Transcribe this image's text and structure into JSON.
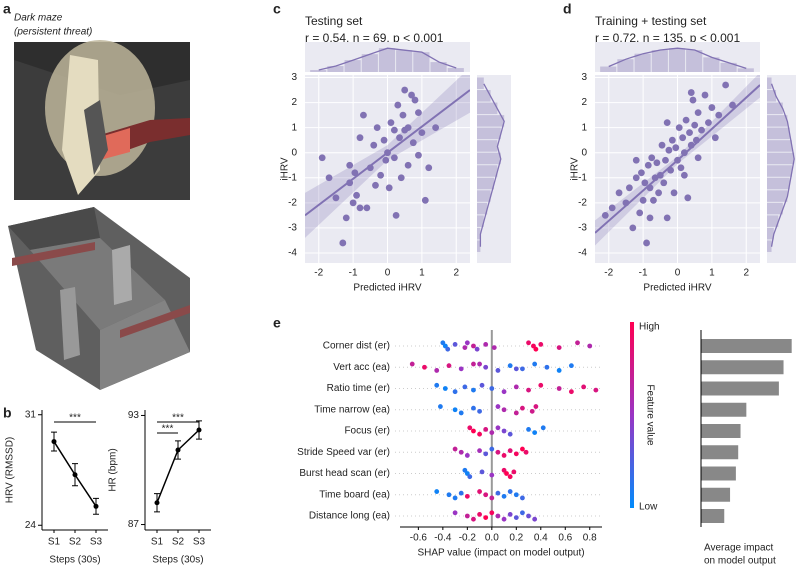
{
  "panel_labels": [
    "a",
    "b",
    "c",
    "d",
    "e"
  ],
  "panel_a": {
    "caption": [
      "Dark maze",
      "(persistent threat)"
    ]
  },
  "chart_data": [
    {
      "type": "line",
      "categories": [
        "S1",
        "S2",
        "S3"
      ],
      "values": [
        29.3,
        27.2,
        25.2
      ],
      "errors": [
        0.6,
        0.7,
        0.5
      ],
      "ylim": [
        23.7,
        31.3
      ],
      "yticks": [
        24,
        31
      ],
      "ylabel": "HRV (RMSSD)",
      "xlabel": "Steps (30s)",
      "color": "#000000",
      "significance": [
        {
          "label": "***",
          "between": [
            "S1",
            "S3"
          ]
        }
      ]
    },
    {
      "type": "line",
      "categories": [
        "S1",
        "S2",
        "S3"
      ],
      "values": [
        88.2,
        91.1,
        92.2
      ],
      "errors": [
        0.5,
        0.5,
        0.5
      ],
      "ylim": [
        86.7,
        93.3
      ],
      "yticks": [
        87,
        93
      ],
      "ylabel": "HR (bpm)",
      "xlabel": "Steps (30s)",
      "color": "#000000",
      "significance": [
        {
          "label": "***",
          "between": [
            "S1",
            "S3"
          ]
        },
        {
          "label": "***",
          "between": [
            "S1",
            "S2"
          ]
        }
      ]
    },
    {
      "type": "scatter",
      "title": "Testing set",
      "subtitle": "r = 0.54, n = 69, p < 0.001",
      "color": "#8172b3",
      "x": [
        -1.9,
        -1.7,
        -1.5,
        -1.3,
        -1.2,
        -1.1,
        -1.0,
        -0.95,
        -0.9,
        -0.8,
        -0.8,
        -0.6,
        -0.5,
        -0.4,
        -0.35,
        -0.3,
        -0.2,
        -0.1,
        -0.05,
        0.0,
        0.05,
        0.1,
        0.2,
        0.2,
        0.3,
        0.35,
        0.4,
        0.45,
        0.5,
        0.5,
        0.6,
        0.6,
        0.7,
        0.75,
        0.8,
        0.9,
        1.0,
        1.1,
        1.2,
        1.4,
        -1.1,
        0.25,
        -0.7,
        0.9
      ],
      "y": [
        -0.2,
        -1.0,
        -1.8,
        -3.6,
        -2.6,
        -1.2,
        -2.0,
        -0.8,
        -1.7,
        0.6,
        -2.2,
        -2.2,
        -0.6,
        0.3,
        -1.3,
        1.0,
        -0.9,
        0.5,
        -0.3,
        0.0,
        -1.4,
        1.2,
        0.9,
        -0.2,
        1.9,
        0.6,
        -1.0,
        1.5,
        0.9,
        2.5,
        1.0,
        -0.5,
        2.3,
        0.4,
        2.1,
        1.6,
        0.8,
        -1.9,
        -0.6,
        1.0,
        -0.5,
        -2.5,
        1.5,
        -0.1
      ],
      "xlim": [
        -2.4,
        2.4
      ],
      "ylim": [
        -4.4,
        3.1
      ],
      "xticks": [
        -2,
        -1,
        0,
        1,
        2
      ],
      "yticks": [
        -4,
        -3,
        -2,
        -1,
        0,
        1,
        2,
        3
      ],
      "xlabel": "Predicted iHRV",
      "ylabel": "iHRV",
      "fit": {
        "x": [
          -2.4,
          0,
          2.4
        ],
        "y": [
          -2.5,
          0.0,
          2.5
        ],
        "lower": [
          -3.4,
          -0.3,
          1.6
        ],
        "upper": [
          -1.6,
          0.3,
          3.4
        ]
      },
      "top_hist": {
        "bins": [
          -2.25,
          -1.75,
          -1.25,
          -0.75,
          -0.25,
          0.25,
          0.75,
          1.25,
          1.75,
          2.25
        ],
        "counts": [
          1,
          3,
          6,
          9,
          12,
          11,
          10,
          5,
          2
        ]
      },
      "right_hist": {
        "bins": [
          -4,
          -3.5,
          -3,
          -2.5,
          -2,
          -1.5,
          -1,
          -0.5,
          0,
          0.5,
          1,
          1.5,
          2,
          2.5,
          3
        ],
        "counts": [
          1,
          1,
          2,
          3,
          4,
          5,
          6,
          7,
          6,
          7,
          8,
          6,
          4,
          2
        ]
      }
    },
    {
      "type": "scatter",
      "title": "Training + testing set",
      "subtitle": "r = 0.72, n = 135, p < 0.001",
      "color": "#8172b3",
      "x": [
        -2.1,
        -1.9,
        -1.7,
        -1.5,
        -1.4,
        -1.3,
        -1.2,
        -1.1,
        -1.05,
        -1.0,
        -0.95,
        -0.9,
        -0.85,
        -0.8,
        -0.75,
        -0.7,
        -0.65,
        -0.6,
        -0.55,
        -0.5,
        -0.45,
        -0.4,
        -0.35,
        -0.3,
        -0.25,
        -0.2,
        -0.15,
        -0.1,
        -0.05,
        0.0,
        0.05,
        0.1,
        0.15,
        0.2,
        0.25,
        0.3,
        0.35,
        0.4,
        0.45,
        0.5,
        0.55,
        0.6,
        0.7,
        0.8,
        0.9,
        1.0,
        1.1,
        1.2,
        1.4,
        1.6,
        -1.2,
        -0.8,
        0.2,
        0.6,
        -0.3,
        0.4
      ],
      "y": [
        -2.5,
        -2.2,
        -1.6,
        -2.0,
        -1.4,
        -3.0,
        -1.0,
        -2.4,
        -0.8,
        -1.9,
        -1.2,
        -3.6,
        -0.5,
        -1.4,
        -0.2,
        -1.9,
        -1.0,
        -0.4,
        -1.6,
        -0.9,
        0.3,
        -1.2,
        -0.3,
        -2.6,
        0.1,
        -0.7,
        0.5,
        -1.6,
        0.2,
        -0.3,
        1.0,
        -0.6,
        0.6,
        0.0,
        1.3,
        -1.8,
        0.8,
        0.3,
        2.1,
        1.1,
        0.5,
        1.6,
        0.9,
        2.3,
        1.2,
        1.8,
        0.6,
        1.5,
        2.7,
        1.9,
        -0.3,
        -2.6,
        -0.9,
        -0.2,
        1.2,
        2.4
      ],
      "xlim": [
        -2.4,
        2.4
      ],
      "ylim": [
        -4.4,
        3.1
      ],
      "xticks": [
        -2,
        -1,
        0,
        1,
        2
      ],
      "yticks": [
        -4,
        -3,
        -2,
        -1,
        0,
        1,
        2,
        3
      ],
      "xlabel": "Predicted iHRV",
      "ylabel": "iHRV",
      "fit": {
        "x": [
          -2.4,
          0,
          2.4
        ],
        "y": [
          -3.2,
          -0.3,
          2.7
        ],
        "lower": [
          -3.7,
          -0.45,
          2.2
        ],
        "upper": [
          -2.7,
          -0.15,
          3.2
        ]
      },
      "top_hist": {
        "bins": [
          -2.25,
          -1.75,
          -1.25,
          -0.75,
          -0.25,
          0.25,
          0.75,
          1.25,
          1.75,
          2.25
        ],
        "counts": [
          3,
          7,
          10,
          12,
          13,
          12,
          8,
          5,
          2
        ]
      },
      "right_hist": {
        "bins": [
          -4,
          -3.5,
          -3,
          -2.5,
          -2,
          -1.5,
          -1,
          -0.5,
          0,
          0.5,
          1,
          1.5,
          2,
          2.5,
          3
        ],
        "counts": [
          2,
          3,
          5,
          7,
          9,
          10,
          11,
          12,
          11,
          10,
          9,
          7,
          4,
          2
        ]
      }
    },
    {
      "type": "beeswarm",
      "xlabel": "SHAP value (impact on model output)",
      "xlim": [
        -0.75,
        0.9
      ],
      "xticks": [
        -0.6,
        -0.4,
        -0.2,
        {
          "value": 0,
          "label": "0.0"
        },
        0.2,
        0.4,
        0.6,
        0.8
      ],
      "colorbar": {
        "title": "Feature value",
        "high": "High",
        "low": "Low",
        "colors": [
          "#008bfb",
          "#9a35c4",
          "#ff0052"
        ]
      },
      "features": [
        {
          "name": "Corner dist (er)",
          "shap": [
            -0.4,
            -0.38,
            -0.36,
            -0.3,
            -0.22,
            -0.2,
            -0.15,
            -0.12,
            -0.05,
            0.02,
            0.3,
            0.34,
            0.36,
            0.4,
            0.55,
            0.7,
            0.8
          ],
          "feature_value": [
            0.1,
            0.05,
            0.2,
            0.3,
            0.6,
            0.5,
            0.7,
            0.4,
            0.6,
            0.6,
            0.9,
            0.95,
            1,
            0.9,
            0.8,
            0.7,
            0.6
          ]
        },
        {
          "name": "Vert acc (ea)",
          "shap": [
            -0.65,
            -0.55,
            -0.45,
            -0.35,
            -0.25,
            -0.15,
            -0.05,
            0.05,
            0.15,
            0.25,
            0.35,
            0.45,
            0.55,
            0.65,
            0.2,
            -0.1
          ],
          "feature_value": [
            0.7,
            0.9,
            0.6,
            0.8,
            0.5,
            0.7,
            0.4,
            0.3,
            0.1,
            0.2,
            0.1,
            0.15,
            0.05,
            0.1,
            0.3,
            0.6
          ]
        },
        {
          "name": "Ratio time (er)",
          "shap": [
            -0.45,
            -0.38,
            -0.3,
            -0.22,
            -0.15,
            -0.08,
            0.0,
            0.1,
            0.2,
            0.3,
            0.4,
            0.55,
            0.65,
            0.75,
            0.85
          ],
          "feature_value": [
            0.1,
            0.05,
            0.15,
            0.2,
            0.1,
            0.3,
            0.2,
            0.5,
            0.6,
            0.8,
            0.9,
            0.7,
            0.9,
            0.85,
            0.8
          ]
        },
        {
          "name": "Time narrow (ea)",
          "shap": [
            -0.42,
            -0.3,
            -0.25,
            -0.15,
            -0.1,
            0.05,
            0.1,
            0.2,
            0.25,
            0.33,
            0.36
          ],
          "feature_value": [
            0.1,
            0.05,
            0.1,
            0.15,
            0.2,
            0.5,
            0.6,
            0.7,
            0.8,
            0.75,
            0.8
          ]
        },
        {
          "name": "Focus (er)",
          "shap": [
            -0.18,
            -0.15,
            -0.1,
            -0.05,
            0.0,
            0.05,
            0.1,
            0.15,
            0.3,
            0.35,
            0.42
          ],
          "feature_value": [
            0.9,
            1,
            0.95,
            0.8,
            0.6,
            0.5,
            0.4,
            0.3,
            0.1,
            0.05,
            0.1
          ]
        },
        {
          "name": "Stride Speed var (er)",
          "shap": [
            -0.3,
            -0.25,
            -0.2,
            -0.1,
            -0.05,
            0.0,
            0.05,
            0.1,
            0.15,
            0.2,
            0.25,
            0.28
          ],
          "feature_value": [
            0.7,
            0.6,
            0.5,
            0.55,
            0.3,
            0.2,
            0.8,
            0.9,
            0.85,
            0.95,
            1,
            0.9
          ]
        },
        {
          "name": "Burst head scan (er)",
          "shap": [
            -0.22,
            -0.2,
            -0.18,
            -0.08,
            0.0,
            0.1,
            0.12,
            0.15,
            0.18
          ],
          "feature_value": [
            0.1,
            0.05,
            0.2,
            0.3,
            0.5,
            0.9,
            1,
            0.95,
            0.9
          ]
        },
        {
          "name": "Time board (ea)",
          "shap": [
            -0.45,
            -0.35,
            -0.3,
            -0.25,
            -0.2,
            -0.1,
            -0.05,
            0.0,
            0.05,
            0.1,
            0.15,
            0.2,
            0.25
          ],
          "feature_value": [
            0.05,
            0.1,
            0.1,
            0.15,
            0.9,
            0.85,
            0.8,
            0.7,
            0.2,
            0.1,
            0.15,
            0.1,
            0.2
          ]
        },
        {
          "name": "Distance long (ea)",
          "shap": [
            -0.3,
            -0.2,
            -0.15,
            -0.1,
            -0.05,
            0.0,
            0.05,
            0.1,
            0.15,
            0.2,
            0.25,
            0.3,
            0.35
          ],
          "feature_value": [
            0.5,
            0.7,
            0.8,
            0.9,
            1,
            0.95,
            0.6,
            0.5,
            0.4,
            0.3,
            0.2,
            0.35,
            0.4
          ]
        }
      ]
    },
    {
      "type": "bar",
      "values": [
        0.39,
        0.355,
        0.335,
        0.195,
        0.17,
        0.16,
        0.15,
        0.125,
        0.1
      ],
      "xlim": [
        0,
        0.4
      ],
      "color": "#888888",
      "xlabel": [
        "Average impact",
        "on model output"
      ]
    }
  ]
}
